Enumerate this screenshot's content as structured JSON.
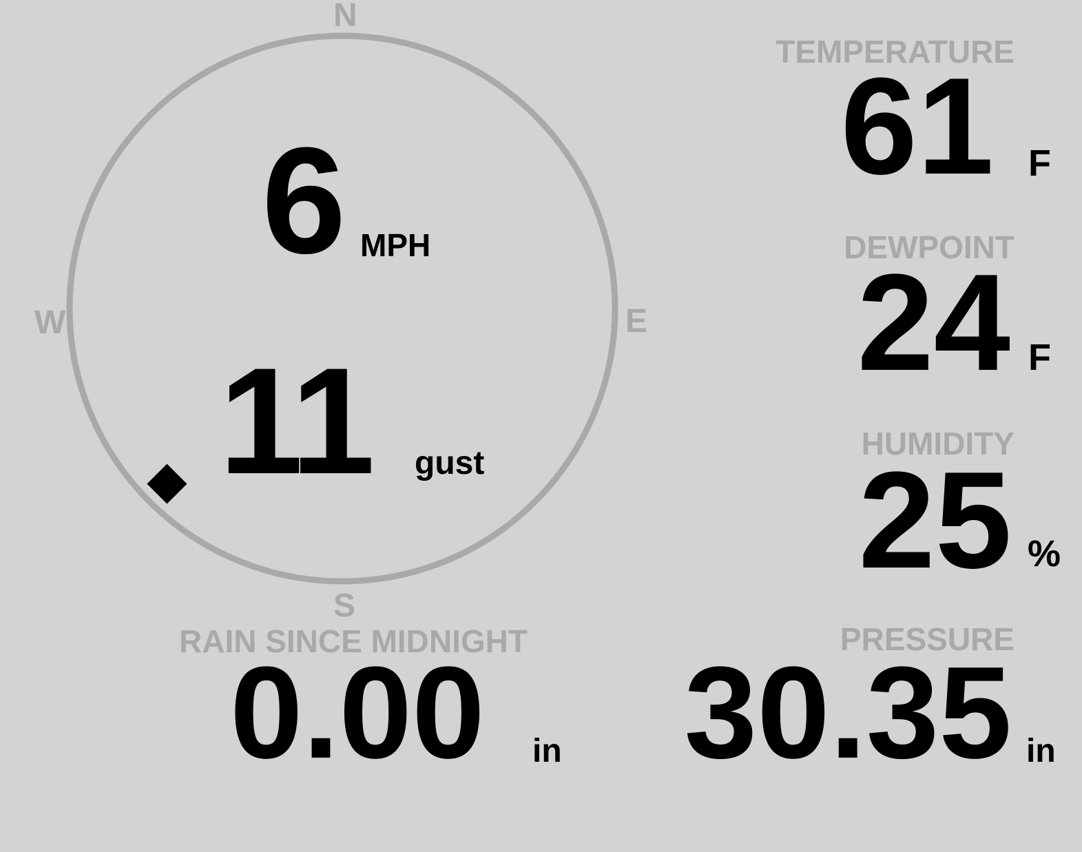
{
  "wind": {
    "speed": "6",
    "speed_unit": "MPH",
    "gust": "11",
    "gust_label": "gust",
    "direction_degrees": 225,
    "compass": {
      "n": "N",
      "e": "E",
      "s": "S",
      "w": "W"
    }
  },
  "rain": {
    "label": "RAIN SINCE MIDNIGHT",
    "value": "0.00",
    "unit": "in"
  },
  "temperature": {
    "label": "TEMPERATURE",
    "value": "61",
    "unit": "F"
  },
  "dewpoint": {
    "label": "DEWPOINT",
    "value": "24",
    "unit": "F"
  },
  "humidity": {
    "label": "HUMIDITY",
    "value": "25",
    "unit": "%"
  },
  "pressure": {
    "label": "PRESSURE",
    "value": "30.35",
    "unit": "in"
  },
  "colors": {
    "background": "#d3d3d3",
    "ring": "#a9a9a9",
    "label": "#a9a9a9",
    "value": "#000000"
  }
}
